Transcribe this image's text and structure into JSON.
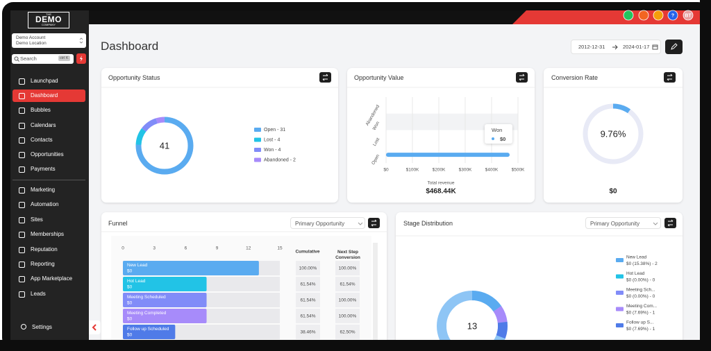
{
  "logo": {
    "top": "THE",
    "main": "DEMO",
    "bottom": "COMPANY"
  },
  "sidebar": {
    "account": "Demo Account",
    "location": "Demo Location",
    "search": "Search",
    "shortcut": "ctrl K",
    "nav_primary": [
      "Launchpad",
      "Dashboard",
      "Bubbles",
      "Calendars",
      "Contacts",
      "Opportunities",
      "Payments"
    ],
    "nav_secondary": [
      "Marketing",
      "Automation",
      "Sites",
      "Memberships",
      "Reputation",
      "Reporting",
      "App Marketplace",
      "Leads"
    ],
    "settings": "Settings"
  },
  "topbar": {
    "help": "?",
    "avatar": "BT"
  },
  "header": {
    "title": "Dashboard",
    "start_date": "2012-12-31",
    "end_date": "2024-01-17"
  },
  "opportunity_status": {
    "title": "Opportunity Status",
    "total": 41,
    "segments": [
      {
        "label": "Open - 31",
        "value": 31,
        "color": "#5aabf0"
      },
      {
        "label": "Lost - 4",
        "value": 4,
        "color": "#22c3e6"
      },
      {
        "label": "Won - 4",
        "value": 4,
        "color": "#818cf8"
      },
      {
        "label": "Abandoned - 2",
        "value": 2,
        "color": "#a78bfa"
      }
    ]
  },
  "opportunity_value": {
    "title": "Opportunity Value",
    "categories": [
      "Abandoned",
      "Won",
      "Lost",
      "Open"
    ],
    "values": [
      0,
      0,
      0,
      468440
    ],
    "color": "#5aabf0",
    "xlim": [
      0,
      500000
    ],
    "xticks": [
      {
        "value": 0,
        "label": "$0"
      },
      {
        "value": 100000,
        "label": "$100K"
      },
      {
        "value": 200000,
        "label": "$200K"
      },
      {
        "value": 300000,
        "label": "$300K"
      },
      {
        "value": 400000,
        "label": "$400K"
      },
      {
        "value": 500000,
        "label": "$500K"
      }
    ],
    "tooltip": {
      "name": "Won",
      "value": "$0"
    },
    "total_label": "Total revenue",
    "total": {
      "value": 468440,
      "label": "$468.44K"
    }
  },
  "conversion_rate": {
    "title": "Conversion Rate",
    "rate": {
      "value": 9.76,
      "label": "9.76%"
    },
    "color": "#5aabf0",
    "revenue": "$0"
  },
  "funnel": {
    "title": "Funnel",
    "select": "Primary Opportunity",
    "xlim": [
      0,
      15
    ],
    "xticks": [
      0,
      3,
      6,
      9,
      12,
      15
    ],
    "columns": [
      "Cumulative",
      "Next Step Conversion"
    ],
    "stages": [
      {
        "name": "New Lead",
        "amount": "$0",
        "value": 13,
        "color": "#5aabf0",
        "cumulative": "100.00%",
        "next": "100.00%"
      },
      {
        "name": "Hot Lead",
        "amount": "$0",
        "value": 8,
        "color": "#22c3e6",
        "cumulative": "61.54%",
        "next": "61.54%"
      },
      {
        "name": "Meeting Scheduled",
        "amount": "$0",
        "value": 8,
        "color": "#818cf8",
        "cumulative": "61.54%",
        "next": "100.00%"
      },
      {
        "name": "Meeting Completed",
        "amount": "$0",
        "value": 8,
        "color": "#a78bfa",
        "cumulative": "61.54%",
        "next": "100.00%"
      },
      {
        "name": "Follow up Scheduled",
        "amount": "$0",
        "value": 5,
        "color": "#4f7be8",
        "cumulative": "38.46%",
        "next": "62.50%"
      }
    ]
  },
  "stage_distribution": {
    "title": "Stage Distribution",
    "select": "Primary Opportunity",
    "total": 13,
    "items": [
      {
        "name": "New Lead",
        "detail": "$0 (15.38%) - 2",
        "value": 2,
        "color": "#5aabf0"
      },
      {
        "name": "Hot Lead",
        "detail": "$0 (0.00%) - 0",
        "value": 0,
        "color": "#22c3e6"
      },
      {
        "name": "Meeting Sch...",
        "detail": "$0 (0.00%) - 0",
        "value": 0,
        "color": "#818cf8"
      },
      {
        "name": "Meeting Com...",
        "detail": "$0 (7.69%) - 1",
        "value": 1,
        "color": "#a78bfa"
      },
      {
        "name": "Follow up S...",
        "detail": "$0 (7.69%) - 1",
        "value": 1,
        "color": "#4f7be8"
      }
    ]
  }
}
